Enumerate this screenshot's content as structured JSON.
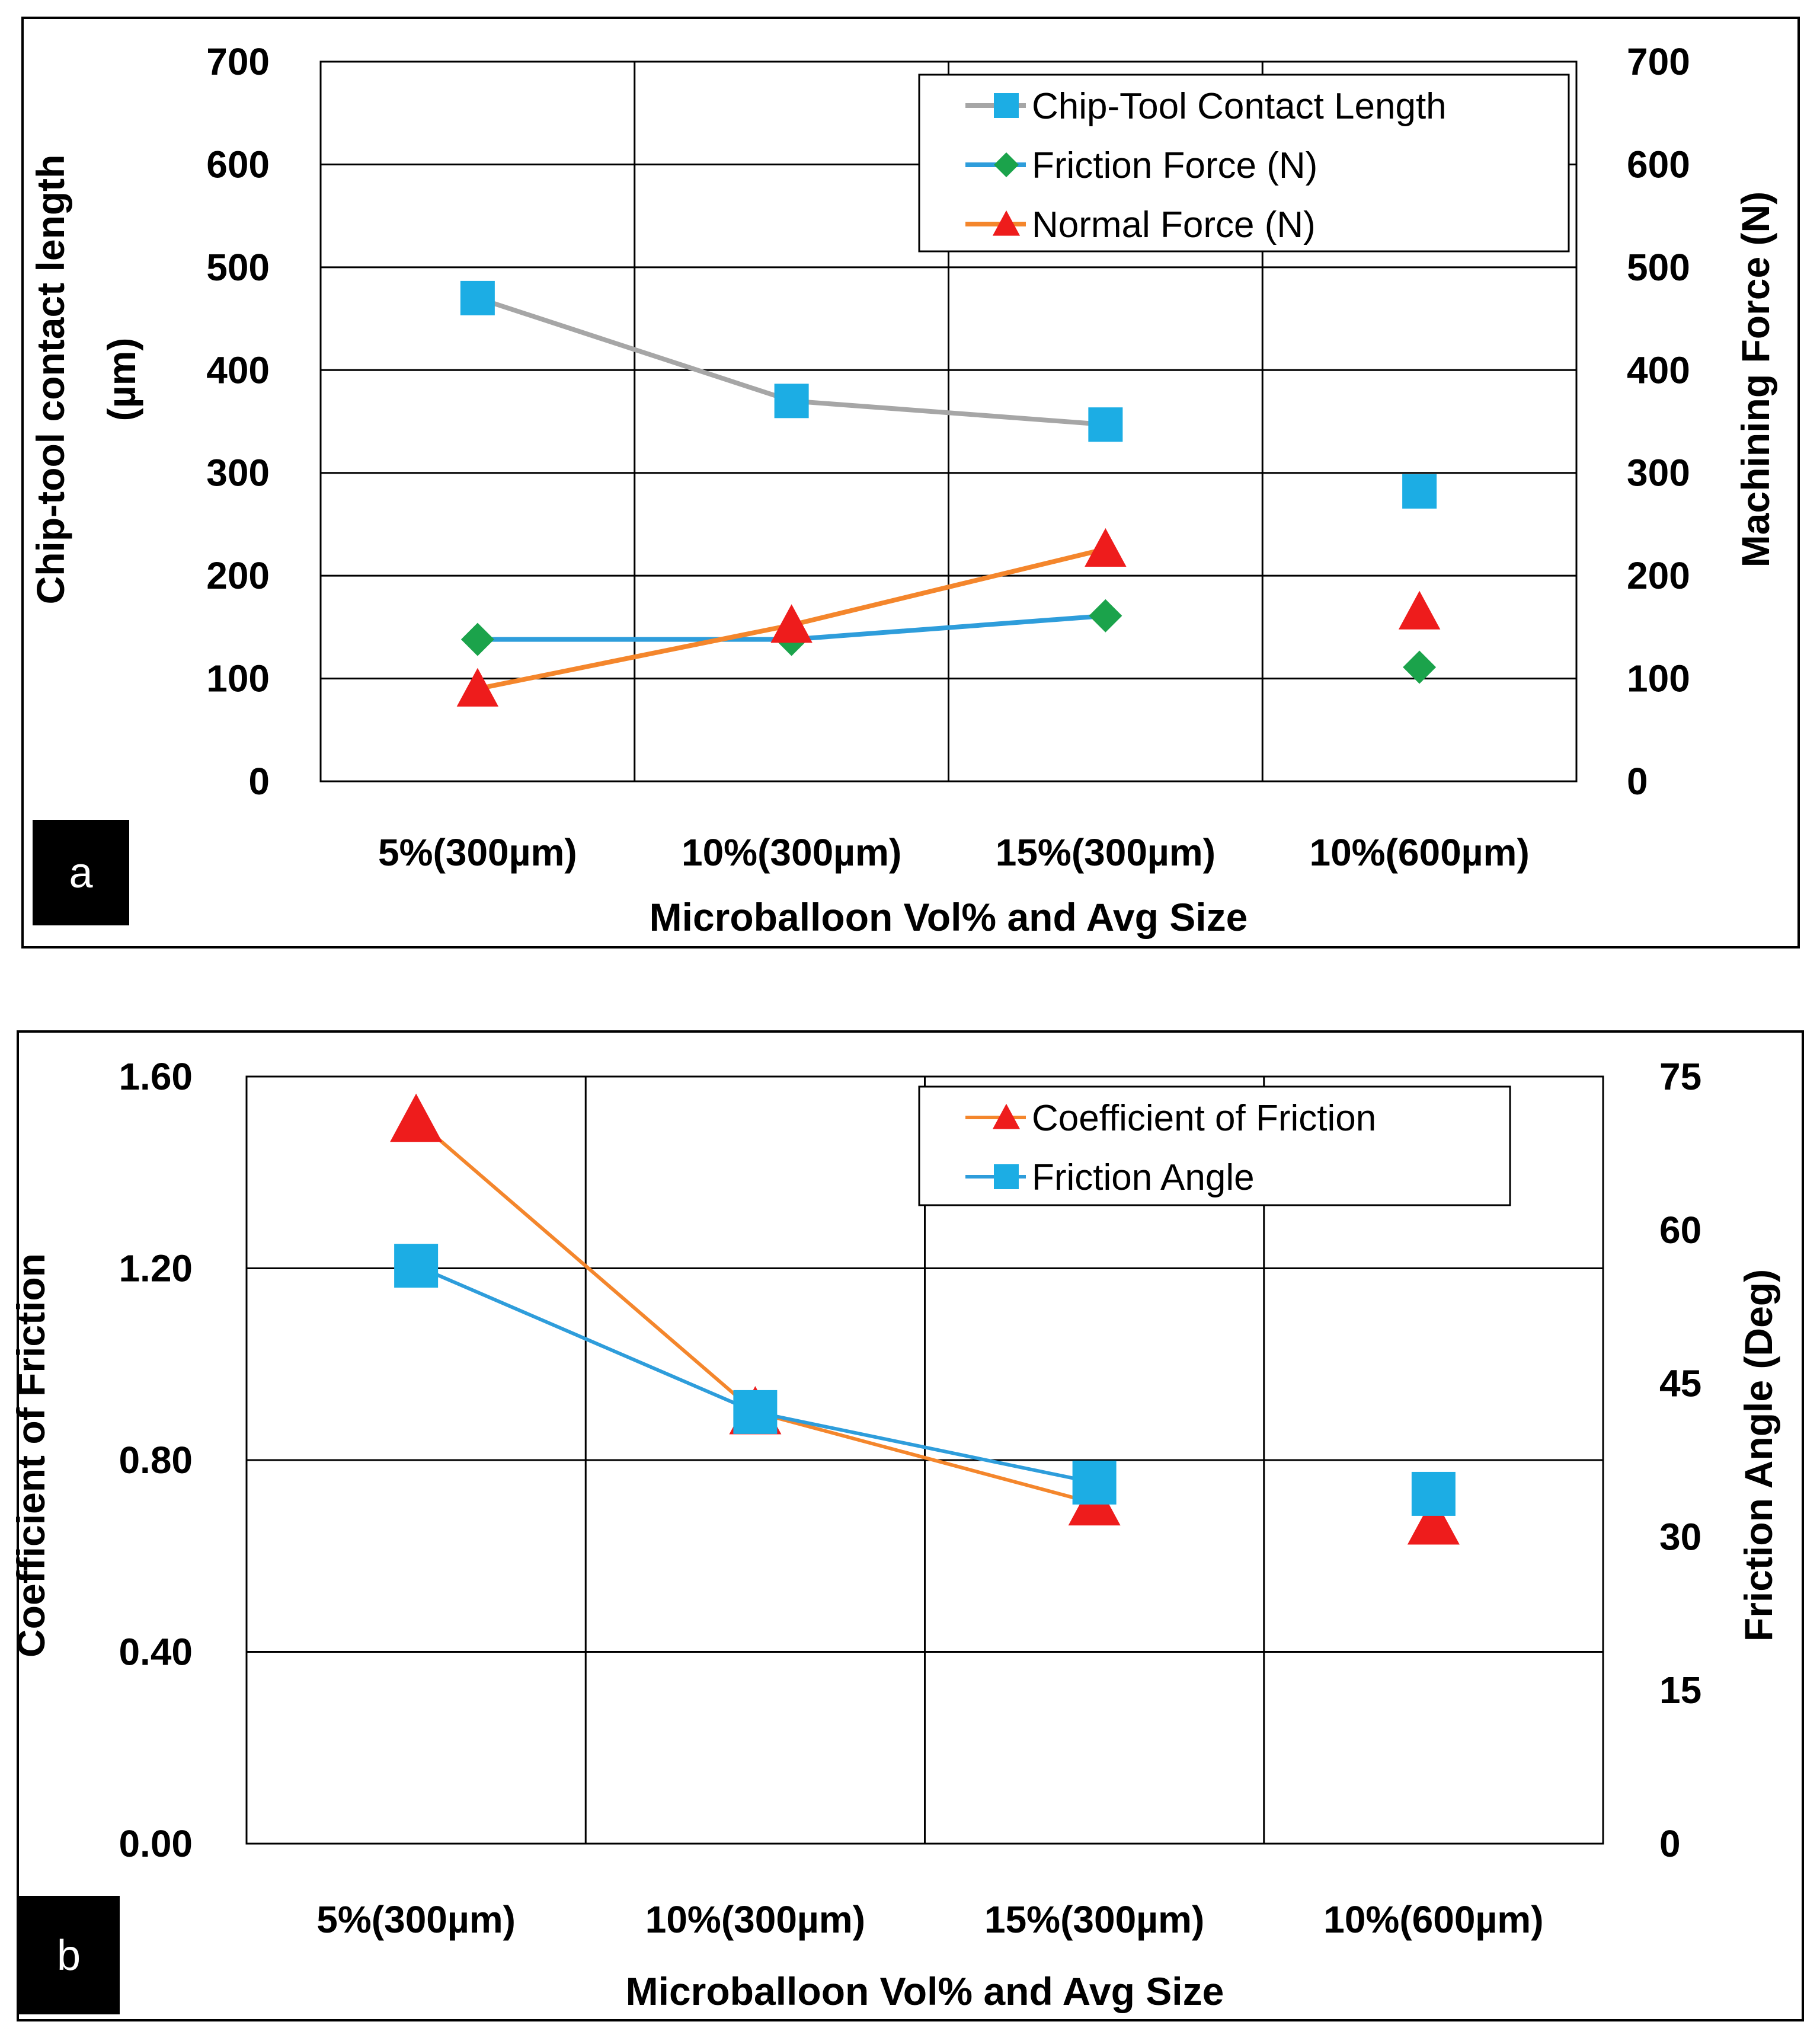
{
  "chart_data": [
    {
      "panel": "a",
      "type": "line",
      "categories": [
        "5%(300µm)",
        "10%(300µm)",
        "15%(300µm)",
        "10%(600µm)"
      ],
      "xlabel": "Microballoon Vol% and Avg Size",
      "ylabel_line1": "Chip-tool contact length",
      "ylabel_line2": "(µm)",
      "y2label": "Machining Force (N)",
      "ylim": [
        0,
        700
      ],
      "y2lim": [
        0,
        700
      ],
      "yticks": [
        "0",
        "100",
        "200",
        "300",
        "400",
        "500",
        "600",
        "700"
      ],
      "y2ticks": [
        "0",
        "100",
        "200",
        "300",
        "400",
        "500",
        "600",
        "700"
      ],
      "grid": true,
      "legend_position": "top-right",
      "series": [
        {
          "name": "Chip-Tool Contact Length",
          "axis": "left",
          "marker": "square",
          "line_color": "#A6A6A6",
          "marker_color": "#1CADE4",
          "values": [
            470,
            370,
            347,
            282
          ],
          "connected_points": 3
        },
        {
          "name": "Friction Force (N)",
          "axis": "right",
          "marker": "diamond",
          "line_color": "#2E9DDB",
          "marker_color": "#1BA34B",
          "values": [
            138,
            138,
            161,
            111
          ],
          "connected_points": 3
        },
        {
          "name": "Normal Force (N)",
          "axis": "right",
          "marker": "triangle",
          "line_color": "#F4862C",
          "marker_color": "#EE1C1C",
          "values": [
            90,
            152,
            226,
            165
          ],
          "connected_points": 3
        }
      ]
    },
    {
      "panel": "b",
      "type": "line",
      "categories": [
        "5%(300µm)",
        "10%(300µm)",
        "15%(300µm)",
        "10%(600µm)"
      ],
      "xlabel": "Microballoon Vol% and Avg Size",
      "ylabel": "Coefficient of Friction",
      "y2label": "Friction Angle (Deg)",
      "ylim": [
        0,
        1.6
      ],
      "y2lim": [
        0,
        75
      ],
      "yticks": [
        "0.00",
        "0.40",
        "0.80",
        "1.20",
        "1.60"
      ],
      "y2ticks": [
        "0",
        "15",
        "30",
        "45",
        "60",
        "75"
      ],
      "grid": true,
      "legend_position": "top-right",
      "series": [
        {
          "name": "Coefficient of Friction",
          "axis": "left",
          "marker": "triangle",
          "line_color": "#F4862C",
          "marker_color": "#EE1C1C",
          "values": [
            1.51,
            0.9,
            0.71,
            0.67
          ],
          "connected_points": 3
        },
        {
          "name": "Friction Angle",
          "axis": "right",
          "marker": "square",
          "line_color": "#2E9DDB",
          "marker_color": "#1CADE4",
          "values": [
            56.5,
            42.2,
            35.3,
            34.2
          ],
          "connected_points": 3
        }
      ]
    }
  ]
}
